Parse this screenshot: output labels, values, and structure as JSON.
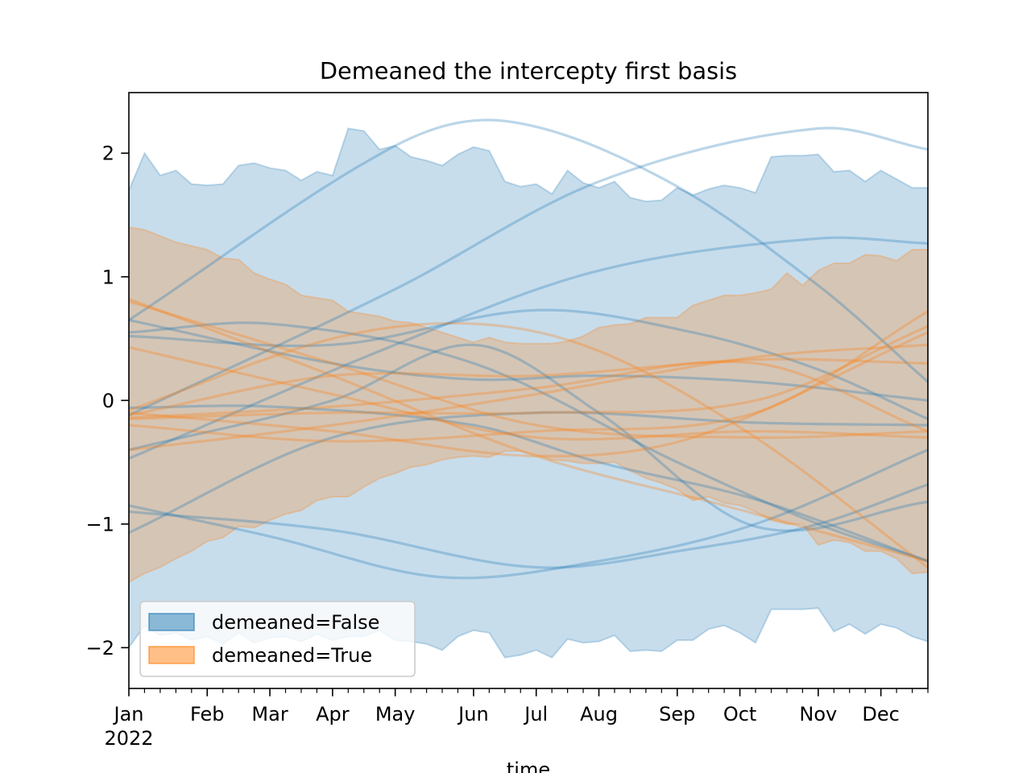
{
  "chart_data": {
    "type": "area",
    "title": "Demeaned the intercepty first basis",
    "xlabel": "time",
    "ylabel": "",
    "x_start": "2022-01-02",
    "x_frequency": "weekly",
    "n_points": 52,
    "xlim": [
      0,
      51
    ],
    "ylim": [
      -2.33,
      2.49
    ],
    "x_ticks": [
      {
        "week": 0,
        "label": "Jan",
        "sublabel": "2022"
      },
      {
        "week": 5,
        "label": "Feb"
      },
      {
        "week": 9,
        "label": "Mar"
      },
      {
        "week": 13,
        "label": "Apr"
      },
      {
        "week": 17,
        "label": "May"
      },
      {
        "week": 22,
        "label": "Jun"
      },
      {
        "week": 26,
        "label": "Jul"
      },
      {
        "week": 30,
        "label": "Aug"
      },
      {
        "week": 35,
        "label": "Sep"
      },
      {
        "week": 39,
        "label": "Oct"
      },
      {
        "week": 44,
        "label": "Nov"
      },
      {
        "week": 48,
        "label": "Dec"
      }
    ],
    "y_ticks": [
      {
        "value": 2,
        "label": "2"
      },
      {
        "value": 1,
        "label": "1"
      },
      {
        "value": 0,
        "label": "0"
      },
      {
        "value": -1,
        "label": "−1"
      },
      {
        "value": -2,
        "label": "−2"
      }
    ],
    "legend": {
      "position": "lower-left",
      "entries": [
        {
          "label": "demeaned=False",
          "color": "#1f77b4"
        },
        {
          "label": "demeaned=True",
          "color": "#ff7f0e"
        }
      ]
    },
    "series": [
      {
        "name": "demeaned=False",
        "color": "#1f77b4",
        "band_upper": [
          1.7,
          2.0,
          1.82,
          1.86,
          1.75,
          1.74,
          1.75,
          1.9,
          1.92,
          1.88,
          1.86,
          1.78,
          1.85,
          1.82,
          2.2,
          2.18,
          2.03,
          2.06,
          1.97,
          1.94,
          1.9,
          1.99,
          2.05,
          2.02,
          1.77,
          1.73,
          1.75,
          1.67,
          1.86,
          1.76,
          1.72,
          1.77,
          1.64,
          1.61,
          1.62,
          1.72,
          1.66,
          1.71,
          1.74,
          1.72,
          1.68,
          1.97,
          1.98,
          1.98,
          1.99,
          1.85,
          1.86,
          1.77,
          1.86,
          1.79,
          1.72,
          1.72
        ],
        "band_lower": [
          -2.0,
          -1.82,
          -1.9,
          -1.88,
          -1.94,
          -1.91,
          -1.97,
          -1.88,
          -1.96,
          -1.92,
          -1.91,
          -1.95,
          -1.89,
          -1.94,
          -1.91,
          -1.91,
          -1.86,
          -1.94,
          -1.95,
          -1.97,
          -2.02,
          -1.91,
          -1.86,
          -1.88,
          -2.08,
          -2.06,
          -2.02,
          -2.08,
          -1.93,
          -1.96,
          -1.95,
          -1.9,
          -2.03,
          -2.02,
          -2.03,
          -1.94,
          -1.94,
          -1.85,
          -1.82,
          -1.88,
          -1.96,
          -1.69,
          -1.69,
          -1.69,
          -1.68,
          -1.87,
          -1.81,
          -1.89,
          -1.81,
          -1.84,
          -1.91,
          -1.95
        ],
        "samples": [
          [
            [
              0,
              0.65
            ],
            [
              17,
              2.06
            ],
            [
              24,
              2.26
            ],
            [
              34,
              1.8
            ],
            [
              44,
              0.93
            ],
            [
              51,
              0.15
            ]
          ],
          [
            [
              0,
              -0.12
            ],
            [
              17,
              0.9
            ],
            [
              30,
              1.77
            ],
            [
              44,
              2.2
            ],
            [
              51,
              2.03
            ]
          ],
          [
            [
              0,
              -0.47
            ],
            [
              17,
              0.45
            ],
            [
              30,
              1.05
            ],
            [
              44,
              1.31
            ],
            [
              51,
              1.27
            ]
          ],
          [
            [
              0,
              0.55
            ],
            [
              9,
              0.62
            ],
            [
              22,
              0.3
            ],
            [
              35,
              -0.5
            ],
            [
              44,
              -1.0
            ],
            [
              51,
              -1.3
            ]
          ],
          [
            [
              0,
              0.65
            ],
            [
              13,
              0.3
            ],
            [
              22,
              0.17
            ],
            [
              30,
              0.2
            ],
            [
              40,
              0.15
            ],
            [
              51,
              0.0
            ]
          ],
          [
            [
              0,
              0.52
            ],
            [
              13,
              0.45
            ],
            [
              26,
              0.73
            ],
            [
              36,
              0.55
            ],
            [
              44,
              0.25
            ],
            [
              51,
              -0.15
            ]
          ],
          [
            [
              0,
              -0.06
            ],
            [
              9,
              -0.05
            ],
            [
              22,
              -0.2
            ],
            [
              30,
              -0.5
            ],
            [
              40,
              -0.8
            ],
            [
              51,
              -1.3
            ]
          ],
          [
            [
              0,
              -1.07
            ],
            [
              13,
              -0.3
            ],
            [
              26,
              -0.1
            ],
            [
              40,
              -0.18
            ],
            [
              51,
              -0.2
            ]
          ],
          [
            [
              0,
              -0.85
            ],
            [
              9,
              -1.1
            ],
            [
              20,
              -1.43
            ],
            [
              30,
              -1.3
            ],
            [
              40,
              -1.0
            ],
            [
              51,
              -0.4
            ]
          ],
          [
            [
              0,
              -0.9
            ],
            [
              13,
              -1.05
            ],
            [
              26,
              -1.35
            ],
            [
              36,
              -1.2
            ],
            [
              44,
              -1.0
            ],
            [
              51,
              -0.68
            ]
          ],
          [
            [
              0,
              -0.4
            ],
            [
              13,
              0.0
            ],
            [
              22,
              0.45
            ],
            [
              30,
              -0.1
            ],
            [
              40,
              -1.02
            ],
            [
              51,
              -0.82
            ]
          ]
        ]
      },
      {
        "name": "demeaned=True",
        "color": "#ff7f0e",
        "band_upper": [
          1.4,
          1.38,
          1.33,
          1.28,
          1.25,
          1.22,
          1.15,
          1.14,
          1.03,
          0.98,
          0.94,
          0.85,
          0.83,
          0.81,
          0.72,
          0.7,
          0.68,
          0.64,
          0.63,
          0.59,
          0.55,
          0.51,
          0.47,
          0.51,
          0.47,
          0.46,
          0.46,
          0.46,
          0.48,
          0.52,
          0.59,
          0.61,
          0.62,
          0.67,
          0.67,
          0.67,
          0.77,
          0.81,
          0.85,
          0.85,
          0.87,
          0.9,
          1.03,
          0.93,
          1.05,
          1.11,
          1.11,
          1.18,
          1.17,
          1.13,
          1.22,
          1.22
        ],
        "band_lower": [
          -1.47,
          -1.4,
          -1.35,
          -1.28,
          -1.22,
          -1.14,
          -1.11,
          -1.02,
          -1.03,
          -0.97,
          -0.92,
          -0.89,
          -0.81,
          -0.78,
          -0.78,
          -0.7,
          -0.63,
          -0.59,
          -0.54,
          -0.52,
          -0.48,
          -0.46,
          -0.45,
          -0.46,
          -0.41,
          -0.41,
          -0.44,
          -0.48,
          -0.49,
          -0.51,
          -0.51,
          -0.5,
          -0.57,
          -0.63,
          -0.67,
          -0.72,
          -0.81,
          -0.78,
          -0.83,
          -0.85,
          -0.9,
          -0.97,
          -1.0,
          -1.0,
          -1.17,
          -1.13,
          -1.15,
          -1.22,
          -1.22,
          -1.28,
          -1.4,
          -1.39
        ],
        "samples": [
          [
            [
              0,
              0.82
            ],
            [
              13,
              0.2
            ],
            [
              26,
              -0.45
            ],
            [
              38,
              -0.85
            ],
            [
              51,
              -1.3
            ]
          ],
          [
            [
              0,
              0.8
            ],
            [
              13,
              0.3
            ],
            [
              26,
              -0.2
            ],
            [
              40,
              -0.3
            ],
            [
              51,
              -0.25
            ]
          ],
          [
            [
              0,
              0.43
            ],
            [
              13,
              0.05
            ],
            [
              26,
              -0.3
            ],
            [
              40,
              -0.25
            ],
            [
              51,
              -0.3
            ]
          ],
          [
            [
              0,
              -0.08
            ],
            [
              13,
              0.5
            ],
            [
              22,
              0.62
            ],
            [
              30,
              0.4
            ],
            [
              40,
              -0.3
            ],
            [
              51,
              -1.35
            ]
          ],
          [
            [
              0,
              -0.12
            ],
            [
              13,
              0.2
            ],
            [
              26,
              0.2
            ],
            [
              40,
              0.33
            ],
            [
              51,
              0.3
            ]
          ],
          [
            [
              0,
              -0.15
            ],
            [
              13,
              -0.1
            ],
            [
              26,
              -0.1
            ],
            [
              40,
              0.0
            ],
            [
              51,
              0.6
            ]
          ],
          [
            [
              0,
              -0.1
            ],
            [
              13,
              -0.25
            ],
            [
              26,
              -0.45
            ],
            [
              36,
              -0.3
            ],
            [
              51,
              0.55
            ]
          ],
          [
            [
              0,
              -0.2
            ],
            [
              13,
              -0.33
            ],
            [
              26,
              -0.25
            ],
            [
              40,
              -0.1
            ],
            [
              51,
              0.72
            ]
          ],
          [
            [
              0,
              -0.4
            ],
            [
              13,
              -0.2
            ],
            [
              26,
              0.05
            ],
            [
              40,
              0.35
            ],
            [
              51,
              0.45
            ]
          ],
          [
            [
              0,
              -0.14
            ],
            [
              13,
              -0.05
            ],
            [
              26,
              0.1
            ],
            [
              40,
              0.3
            ],
            [
              51,
              -0.25
            ]
          ]
        ]
      }
    ]
  }
}
